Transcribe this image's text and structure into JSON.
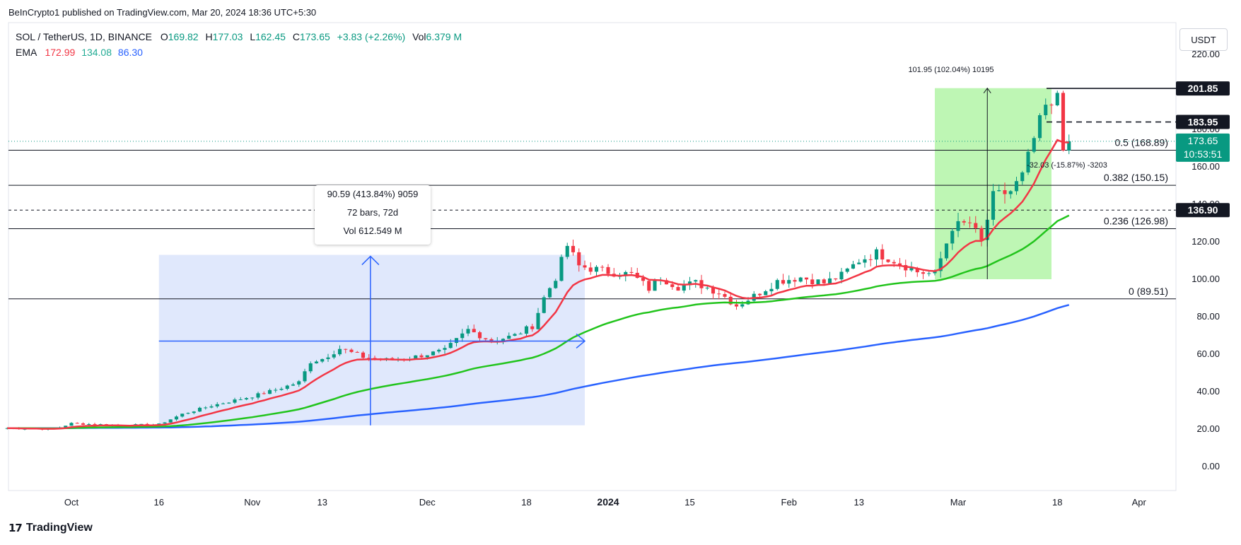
{
  "header": {
    "publisher": "BeInCrypto1 published on TradingView.com, Mar 20, 2024 18:36 UTC+5:30"
  },
  "legend": {
    "symbol": "SOL / TetherUS, 1D, BINANCE",
    "o_label": "O",
    "o": "169.82",
    "h_label": "H",
    "h": "177.03",
    "l_label": "L",
    "l": "162.45",
    "c_label": "C",
    "c": "173.65",
    "change": "+3.83 (+2.26%)",
    "vol_label": "Vol",
    "vol": "6.379 M",
    "ema_label": "EMA",
    "ema_values": [
      "172.99",
      "134.08",
      "86.30"
    ]
  },
  "currency_button": "USDT",
  "footer": {
    "logo": "TradingView"
  },
  "colors": {
    "up": "#089981",
    "down": "#f23645",
    "ema_short": "#f23645",
    "ema_mid": "#22c41c",
    "ema_long": "#2962ff",
    "blue_zone": "#dde6fc",
    "green_zone": "#b7f5ac",
    "arrow": "#2962ff"
  },
  "measure_tooltip": {
    "line1": "90.59 (413.84%) 9059",
    "line2": "72 bars, 72d",
    "line3": "Vol 612.549 M"
  },
  "chart_data": {
    "type": "candlestick",
    "title": "SOL / TetherUS, 1D, BINANCE",
    "ylim": [
      -10,
      225
    ],
    "y_ticks": [
      "0.00",
      "20.00",
      "40.00",
      "60.00",
      "80.00",
      "100.00",
      "120.00",
      "140.00",
      "160.00",
      "180.00",
      "200.00",
      "220.00"
    ],
    "x_ticks": [
      {
        "label": "Oct",
        "date": "2023-10-01"
      },
      {
        "label": "16",
        "date": "2023-10-16"
      },
      {
        "label": "Nov",
        "date": "2023-11-01"
      },
      {
        "label": "13",
        "date": "2023-11-13"
      },
      {
        "label": "Dec",
        "date": "2023-12-01"
      },
      {
        "label": "18",
        "date": "2023-12-18"
      },
      {
        "label": "2024",
        "date": "2024-01-01",
        "bold": true
      },
      {
        "label": "15",
        "date": "2024-01-15"
      },
      {
        "label": "Feb",
        "date": "2024-02-01"
      },
      {
        "label": "13",
        "date": "2024-02-13"
      },
      {
        "label": "Mar",
        "date": "2024-03-01"
      },
      {
        "label": "18",
        "date": "2024-03-18"
      },
      {
        "label": "Apr",
        "date": "2024-04-01"
      }
    ],
    "x_start": "2023-09-20",
    "x_end": "2024-04-04",
    "close_anchors": [
      [
        "2023-09-20",
        20.5
      ],
      [
        "2023-09-28",
        20.0
      ],
      [
        "2023-10-01",
        23.0
      ],
      [
        "2023-10-10",
        22.0
      ],
      [
        "2023-10-16",
        22.5
      ],
      [
        "2023-10-20",
        28.0
      ],
      [
        "2023-10-25",
        32.5
      ],
      [
        "2023-11-01",
        37.5
      ],
      [
        "2023-11-05",
        41.0
      ],
      [
        "2023-11-09",
        45.0
      ],
      [
        "2023-11-11",
        56.0
      ],
      [
        "2023-11-13",
        57.5
      ],
      [
        "2023-11-16",
        63.0
      ],
      [
        "2023-11-20",
        58.5
      ],
      [
        "2023-11-24",
        57.0
      ],
      [
        "2023-11-28",
        58.0
      ],
      [
        "2023-12-04",
        62.0
      ],
      [
        "2023-12-08",
        73.0
      ],
      [
        "2023-12-12",
        67.0
      ],
      [
        "2023-12-16",
        70.0
      ],
      [
        "2023-12-19",
        75.0
      ],
      [
        "2023-12-21",
        90.0
      ],
      [
        "2023-12-23",
        101.0
      ],
      [
        "2023-12-25",
        118.0
      ],
      [
        "2023-12-27",
        107.0
      ],
      [
        "2024-01-01",
        104.0
      ],
      [
        "2024-01-05",
        102.5
      ],
      [
        "2024-01-08",
        95.0
      ],
      [
        "2024-01-10",
        101.0
      ],
      [
        "2024-01-13",
        96.0
      ],
      [
        "2024-01-16",
        98.0
      ],
      [
        "2024-01-20",
        93.0
      ],
      [
        "2024-01-23",
        86.0
      ],
      [
        "2024-01-26",
        91.0
      ],
      [
        "2024-01-30",
        99.0
      ],
      [
        "2024-02-03",
        101.0
      ],
      [
        "2024-02-07",
        98.0
      ],
      [
        "2024-02-10",
        102.0
      ],
      [
        "2024-02-13",
        110.0
      ],
      [
        "2024-02-16",
        114.0
      ],
      [
        "2024-02-19",
        110.0
      ],
      [
        "2024-02-23",
        104.0
      ],
      [
        "2024-02-26",
        102.5
      ],
      [
        "2024-02-29",
        128.0
      ],
      [
        "2024-03-03",
        130.0
      ],
      [
        "2024-03-05",
        120.0
      ],
      [
        "2024-03-07",
        144.0
      ],
      [
        "2024-03-10",
        147.0
      ],
      [
        "2024-03-12",
        155.0
      ],
      [
        "2024-03-14",
        175.0
      ],
      [
        "2024-03-16",
        192.0
      ],
      [
        "2024-03-17",
        190.0
      ],
      [
        "2024-03-18",
        200.0
      ],
      [
        "2024-03-19",
        172.0
      ],
      [
        "2024-03-20",
        173.65
      ]
    ],
    "ema_series": [
      {
        "name": "EMA 172.99",
        "color": "#f23645",
        "value": 172.99
      },
      {
        "name": "EMA 134.08",
        "color": "#22c41c",
        "value": 134.08
      },
      {
        "name": "EMA 86.30",
        "color": "#2962ff",
        "value": 86.3
      }
    ],
    "price_lines": [
      {
        "price": 201.85,
        "label": "201.85",
        "style": "solid",
        "tag": "dark"
      },
      {
        "price": 183.95,
        "label": "183.95",
        "style": "dashed",
        "tag": "dark"
      },
      {
        "price": 136.9,
        "label": "136.90",
        "style": "dashed",
        "tag": "dark"
      }
    ],
    "fib_levels": [
      {
        "price": 168.89,
        "label": "0.5 (168.89)"
      },
      {
        "price": 150.15,
        "label": "0.382 (150.15)"
      },
      {
        "price": 126.98,
        "label": "0.236 (126.98)"
      },
      {
        "price": 89.51,
        "label": "0 (89.51)"
      }
    ],
    "current_price": {
      "label": "173.65",
      "countdown": "10:53:51",
      "price": 173.65
    },
    "blue_measure": {
      "from": "2023-10-16",
      "to": "2023-12-28",
      "low": 22,
      "high": 113,
      "label": "90.59 (413.84%) 9059"
    },
    "green_measure": {
      "from": "2024-02-26",
      "to": "2024-03-17",
      "low": 100,
      "high": 202,
      "label": "101.95 (102.04%) 10195"
    },
    "drop_annotation": {
      "label": "-32.03 (-15.87%) -3203",
      "date": "2024-03-18",
      "price": 161
    },
    "ema_final_values": {
      "short": 172.99,
      "mid": 134.08,
      "long": 86.3
    }
  }
}
